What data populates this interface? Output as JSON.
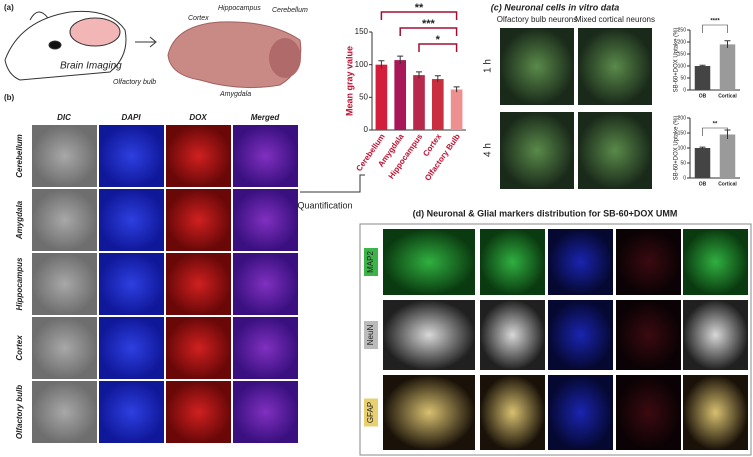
{
  "panel_a": {
    "label": "(a)",
    "caption": "Brain Imaging",
    "regions": [
      "Cortex",
      "Hippocampus",
      "Cerebellum",
      "Olfactory bulb",
      "Amygdala"
    ]
  },
  "panel_b": {
    "label": "(b)",
    "columns": [
      "DIC",
      "DAPI",
      "DOX",
      "Merged"
    ],
    "rows": [
      "Cerebellum",
      "Amygdala",
      "Hippocampus",
      "Cortex",
      "Olfactory bulb"
    ],
    "arrow_label": "Quantification"
  },
  "panel_c": {
    "title": "(c) Neuronal cells in vitro data",
    "columns": [
      "Olfactory bulb neurons",
      "Mixed cortical neurons"
    ],
    "rows": [
      "1 h",
      "4 h"
    ]
  },
  "panel_d": {
    "title": "(d) Neuronal & Glial markers distribution for SB-60+DOX UMM",
    "rows": [
      "MAP2",
      "NeuN",
      "GFAP"
    ]
  },
  "chart_data": [
    {
      "type": "bar",
      "y_label": "Mean gray value",
      "categories": [
        "Cerebellum",
        "Amygdala",
        "Hippocampus",
        "Cortex",
        "Olfactory Bulb"
      ],
      "values": [
        100,
        107,
        84,
        78,
        62
      ],
      "errors": [
        6,
        6,
        5,
        5,
        4
      ],
      "colors": [
        "#d41f3c",
        "#a81859",
        "#b8284a",
        "#c9303f",
        "#ee9090"
      ],
      "ylim": [
        0,
        150
      ],
      "yticks": [
        0,
        50,
        100,
        150
      ],
      "annotations": [
        "**",
        "***",
        "*"
      ]
    },
    {
      "type": "bar",
      "y_label": "SB-60+DOX Uptake (%)",
      "categories": [
        "OB",
        "Cortical"
      ],
      "values": [
        100,
        190
      ],
      "errors": [
        3,
        15
      ],
      "colors": [
        "#444444",
        "#9a9a9a"
      ],
      "ylim": [
        0,
        250
      ],
      "yticks": [
        0,
        50,
        100,
        150,
        200,
        250
      ],
      "annotations": [
        "****"
      ]
    },
    {
      "type": "bar",
      "y_label": "SB-60+DOX Uptake (%)",
      "categories": [
        "OB",
        "Cortical"
      ],
      "values": [
        100,
        145
      ],
      "errors": [
        3,
        15
      ],
      "colors": [
        "#444444",
        "#9a9a9a"
      ],
      "ylim": [
        0,
        200
      ],
      "yticks": [
        0,
        50,
        100,
        150,
        200
      ],
      "annotations": [
        "**"
      ]
    }
  ]
}
